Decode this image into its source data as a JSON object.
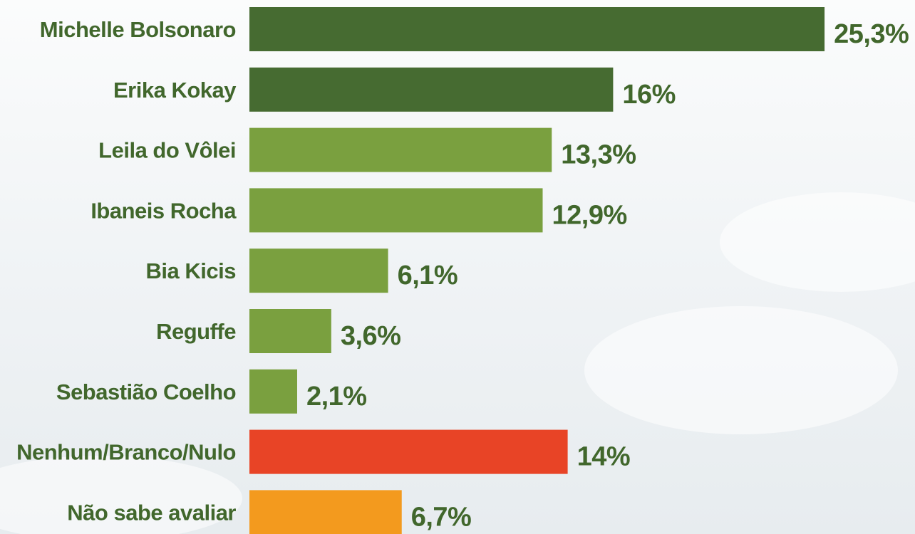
{
  "chart_data": {
    "type": "bar",
    "orientation": "horizontal",
    "title": "",
    "xlabel": "",
    "ylabel": "",
    "categories": [
      "Michelle Bolsonaro",
      "Erika Kokay",
      "Leila do Vôlei",
      "Ibaneis Rocha",
      "Bia Kicis",
      "Reguffe",
      "Sebastião Coelho",
      "Nenhum/Branco/Nulo",
      "Não sabe avaliar"
    ],
    "values": [
      25.3,
      16,
      13.3,
      12.9,
      6.1,
      3.6,
      2.1,
      14,
      6.7
    ],
    "value_labels": [
      "25,3%",
      "16%",
      "13,3%",
      "12,9%",
      "6,1%",
      "3,6%",
      "2,1%",
      "14%",
      "6,7%"
    ],
    "bar_colors": [
      "#466b31",
      "#466b31",
      "#7aa03f",
      "#7aa03f",
      "#7aa03f",
      "#7aa03f",
      "#7aa03f",
      "#e84426",
      "#f39a1e"
    ],
    "label_color": "#41672c",
    "grid": false,
    "legend": "none"
  }
}
